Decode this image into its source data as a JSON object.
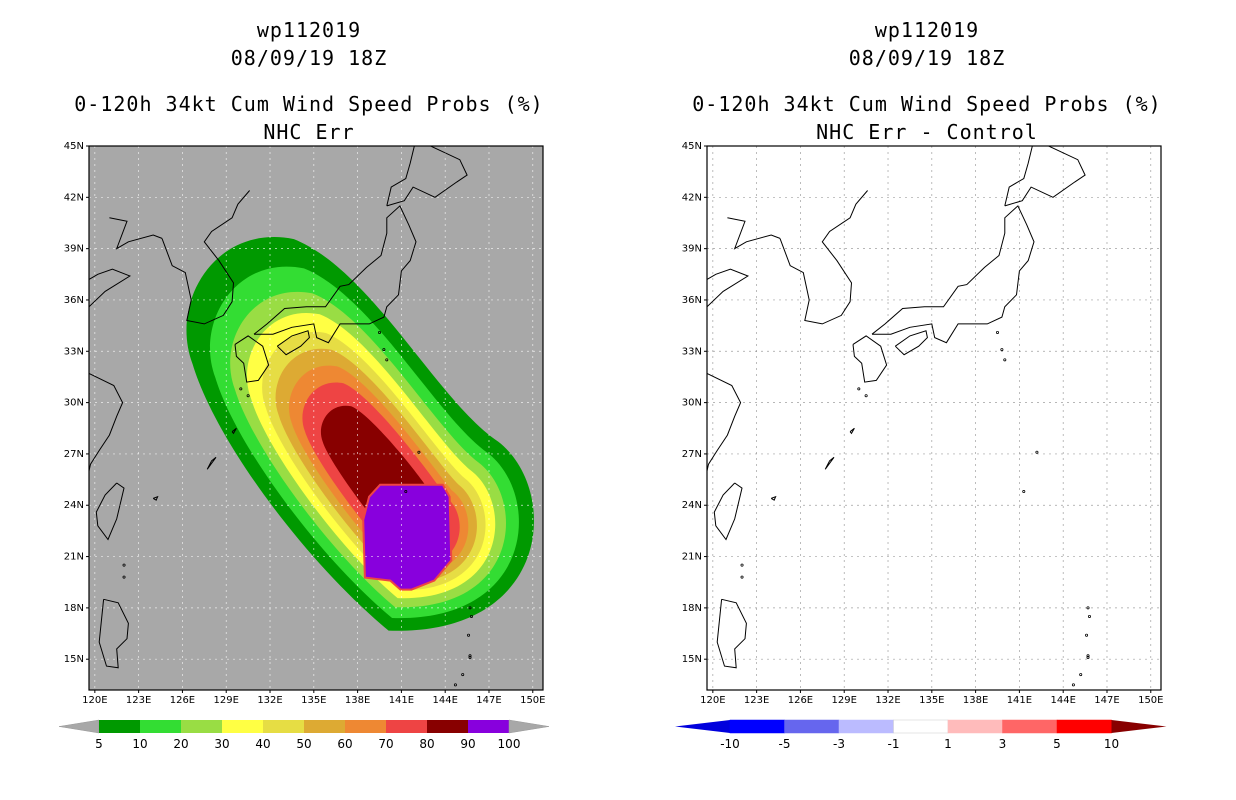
{
  "left_panel": {
    "title_line1": "wp112019",
    "title_line2": "08/09/19 18Z",
    "title_line3": "0-120h 34kt Cum Wind Speed Probs (%)",
    "title_line4": "NHC Err",
    "colorbar_labels": [
      "5",
      "10",
      "20",
      "30",
      "40",
      "50",
      "60",
      "70",
      "80",
      "90",
      "100"
    ],
    "colorbar_colors": [
      "#009900",
      "#33dd33",
      "#99dd44",
      "#ffff44",
      "#e6dd44",
      "#ddaa33",
      "#ee8833",
      "#ee4444",
      "#880000",
      "#8800dd"
    ],
    "background_color": "#a8a8a8"
  },
  "right_panel": {
    "title_line1": "wp112019",
    "title_line2": "08/09/19 18Z",
    "title_line3": "0-120h 34kt Cum Wind Speed Probs (%)",
    "title_line4": "NHC Err - Control",
    "colorbar_labels": [
      "-10",
      "-5",
      "-3",
      "-1",
      "1",
      "3",
      "5",
      "10"
    ],
    "colorbar_colors": [
      "#0000dd",
      "#0000ff",
      "#6666ee",
      "#bbbbff",
      "#ffffff",
      "#ffbbbb",
      "#ff6666",
      "#ff0000",
      "#880000"
    ],
    "background_color": "#ffffff"
  },
  "axes": {
    "lat_labels": [
      "45N",
      "42N",
      "39N",
      "36N",
      "33N",
      "30N",
      "27N",
      "24N",
      "21N",
      "18N",
      "15N"
    ],
    "lon_labels": [
      "120E",
      "123E",
      "126E",
      "129E",
      "132E",
      "135E",
      "138E",
      "141E",
      "144E",
      "147E",
      "150E"
    ]
  },
  "probability_field": {
    "type": "filled contour",
    "levels_percent": [
      5,
      10,
      20,
      30,
      40,
      50,
      60,
      70,
      80,
      90,
      100
    ],
    "max_region_center": [
      "23N",
      "142E"
    ]
  }
}
